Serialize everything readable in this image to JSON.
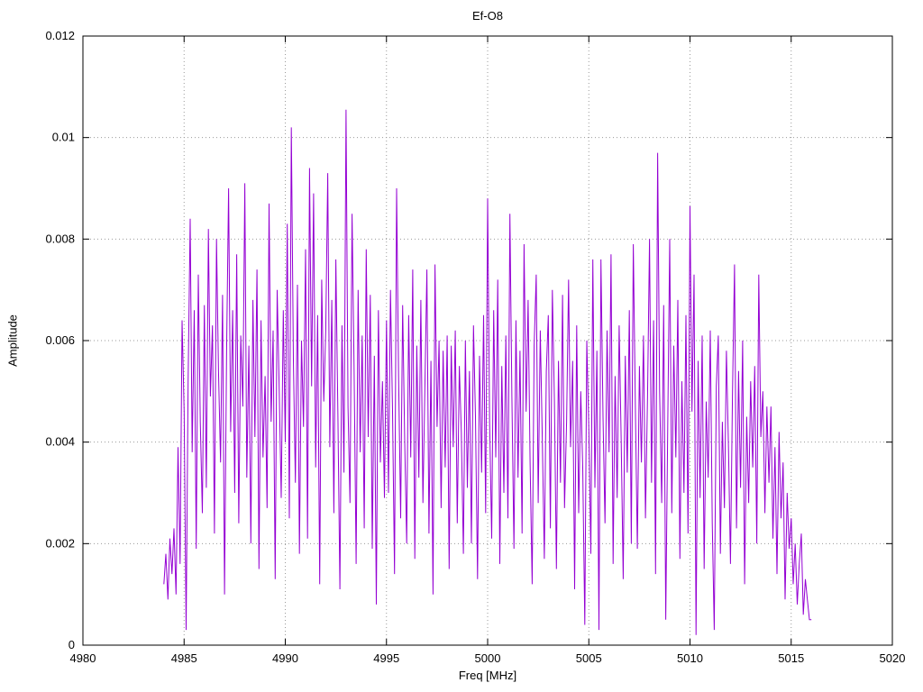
{
  "chart_data": {
    "type": "line",
    "title": "Ef-O8",
    "xlabel": "Freq [MHz]",
    "ylabel": "Amplitude",
    "xlim": [
      4980,
      5020
    ],
    "ylim": [
      0,
      0.012
    ],
    "x_ticks": [
      4980,
      4985,
      4990,
      4995,
      5000,
      5005,
      5010,
      5015,
      5020
    ],
    "x_tick_labels": [
      "4980",
      "4985",
      "4990",
      "4995",
      "5000",
      "5005",
      "5010",
      "5015",
      "5020"
    ],
    "y_ticks": [
      0,
      0.002,
      0.004,
      0.006,
      0.008,
      0.01,
      0.012
    ],
    "y_tick_labels": [
      "0",
      "0.002",
      "0.004",
      "0.006",
      "0.008",
      "0.01",
      "0.012"
    ],
    "grid": "dotted",
    "legend": "none",
    "line_color": "#9400d3",
    "x_start": 4984.0,
    "x_step": 0.1,
    "y_scale": 0.001,
    "y_milli": [
      1.2,
      1.8,
      0.9,
      2.1,
      1.4,
      2.3,
      1.0,
      3.9,
      1.6,
      6.4,
      4.6,
      0.3,
      5.2,
      8.4,
      3.8,
      6.6,
      1.9,
      7.3,
      4.4,
      2.6,
      6.7,
      3.1,
      8.2,
      4.9,
      6.3,
      2.2,
      8.0,
      5.4,
      3.6,
      6.9,
      1.0,
      5.8,
      9.0,
      4.2,
      6.6,
      3.0,
      7.7,
      2.4,
      6.1,
      4.7,
      9.1,
      3.3,
      5.9,
      2.0,
      6.8,
      4.1,
      7.4,
      1.5,
      6.4,
      3.7,
      5.3,
      2.7,
      8.7,
      4.4,
      6.2,
      1.3,
      7.0,
      5.0,
      2.9,
      6.6,
      4.0,
      8.3,
      2.5,
      10.2,
      5.6,
      3.2,
      7.1,
      1.8,
      6.0,
      4.3,
      7.8,
      2.1,
      9.4,
      5.1,
      8.9,
      3.5,
      6.5,
      1.2,
      7.2,
      4.8,
      6.2,
      9.3,
      3.9,
      6.8,
      2.6,
      7.6,
      4.5,
      1.1,
      6.3,
      3.4,
      10.55,
      4.7,
      2.8,
      8.5,
      5.5,
      1.6,
      7.0,
      3.8,
      6.1,
      2.3,
      7.8,
      4.1,
      6.9,
      1.9,
      5.7,
      0.8,
      6.6,
      3.6,
      5.2,
      2.9,
      6.4,
      3.0,
      7.0,
      4.6,
      1.4,
      9.0,
      5.3,
      2.5,
      6.7,
      4.0,
      2.0,
      6.5,
      3.7,
      7.4,
      1.7,
      5.9,
      3.3,
      6.8,
      2.8,
      5.1,
      7.4,
      2.2,
      5.6,
      1.0,
      7.5,
      4.3,
      6.0,
      2.7,
      5.8,
      3.5,
      6.1,
      1.5,
      5.9,
      3.9,
      6.2,
      2.4,
      5.5,
      4.2,
      1.8,
      6.0,
      3.1,
      5.4,
      2.0,
      6.3,
      4.5,
      1.3,
      5.7,
      3.4,
      6.5,
      2.6,
      8.8,
      4.4,
      2.1,
      6.6,
      3.7,
      7.2,
      1.6,
      5.5,
      3.0,
      6.1,
      2.5,
      8.5,
      4.9,
      1.9,
      6.4,
      3.3,
      5.8,
      2.2,
      7.9,
      4.6,
      6.8,
      3.6,
      1.2,
      5.9,
      7.3,
      2.8,
      6.2,
      4.1,
      1.7,
      5.4,
      6.5,
      2.3,
      7.0,
      4.8,
      1.5,
      5.6,
      3.2,
      6.9,
      2.7,
      4.4,
      7.2,
      3.9,
      5.6,
      1.1,
      6.3,
      2.6,
      5.0,
      3.5,
      0.4,
      6.0,
      4.2,
      1.8,
      7.6,
      3.1,
      5.8,
      0.3,
      7.6,
      4.5,
      2.4,
      6.2,
      3.8,
      7.7,
      1.6,
      5.3,
      2.9,
      6.3,
      4.0,
      1.3,
      5.7,
      3.4,
      6.6,
      2.0,
      7.9,
      4.7,
      1.9,
      5.5,
      3.6,
      6.1,
      2.5,
      4.9,
      8.0,
      3.2,
      6.4,
      1.4,
      9.7,
      5.0,
      2.8,
      6.7,
      0.5,
      4.3,
      8.0,
      2.6,
      5.9,
      3.7,
      6.8,
      1.7,
      5.2,
      3.0,
      6.5,
      2.2,
      8.65,
      4.6,
      7.3,
      0.2,
      5.6,
      2.9,
      6.1,
      1.5,
      4.8,
      3.3,
      6.2,
      2.4,
      0.3,
      5.1,
      6.1,
      1.8,
      4.4,
      2.7,
      5.8,
      3.9,
      1.6,
      4.9,
      7.5,
      2.3,
      5.4,
      3.1,
      6.0,
      1.2,
      4.5,
      2.8,
      5.2,
      3.5,
      5.5,
      2.0,
      7.3,
      4.1,
      5.0,
      2.6,
      4.7,
      3.2,
      4.7,
      2.1,
      3.9,
      1.4,
      4.2,
      2.5,
      3.6,
      0.9,
      3.0,
      1.9,
      2.5,
      1.2,
      2.0,
      0.8,
      1.6,
      2.2,
      0.6,
      1.3,
      0.9,
      0.5,
      0.5
    ]
  }
}
